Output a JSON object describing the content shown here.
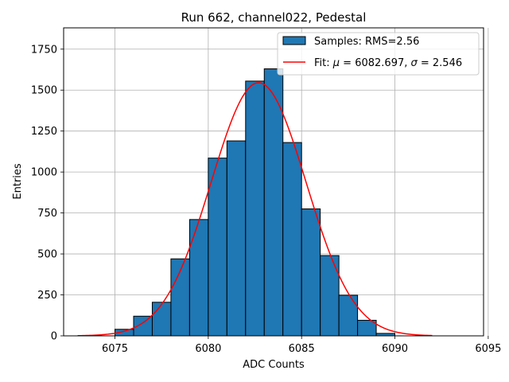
{
  "chart_data": {
    "type": "bar",
    "title": "Run 662, channel022, Pedestal",
    "xlabel": "ADC Counts",
    "ylabel": "Entries",
    "xlim": [
      6072.25,
      6094.75
    ],
    "ylim": [
      0,
      1880
    ],
    "x_ticks": [
      6075,
      6080,
      6085,
      6090,
      6095
    ],
    "y_ticks": [
      0,
      250,
      500,
      750,
      1000,
      1250,
      1500,
      1750
    ],
    "grid": true,
    "legend_position": "top-right",
    "bar_color": "#1f77b4",
    "fit_color": "#ff0000",
    "histogram": {
      "name": "Samples: RMS=2.56",
      "bin_edges": [
        6075,
        6076,
        6077,
        6078,
        6079,
        6080,
        6081,
        6082,
        6083,
        6084,
        6085,
        6086,
        6087,
        6088,
        6089,
        6090
      ],
      "counts": [
        40,
        120,
        205,
        470,
        710,
        1085,
        1190,
        1555,
        1630,
        1180,
        775,
        490,
        248,
        95,
        15
      ]
    },
    "fit": {
      "name_prefix": "Fit: ",
      "name_mu": "μ",
      "name_mid": " = 6082.697, ",
      "name_sigma": "σ",
      "name_end": " = 2.546",
      "mu": 6082.697,
      "sigma": 2.546,
      "amplitude": 1545,
      "x_range": [
        6073,
        6092
      ]
    }
  }
}
